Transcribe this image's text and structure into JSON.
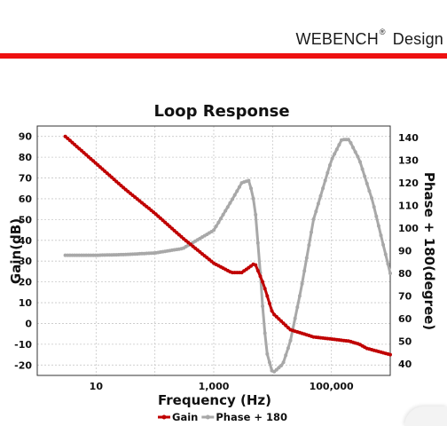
{
  "header": {
    "brand": "WEBENCH",
    "brand_mark": "®",
    "brand_suffix": "Design",
    "accent_color": "#ee1111"
  },
  "chart_data": {
    "type": "line",
    "title": "Loop Response",
    "xlabel": "Frequency (Hz)",
    "ylabel": "Gain(dB)",
    "y2label": "Phase + 180(degree)",
    "xscale": "log",
    "xlim": [
      1,
      1000000
    ],
    "ylim": [
      -25,
      95
    ],
    "y2lim": [
      35,
      145
    ],
    "xticks": [
      10,
      1000,
      100000
    ],
    "xtick_labels": [
      "10",
      "1,000",
      "100,000"
    ],
    "yticks": [
      -20,
      -10,
      0,
      10,
      20,
      30,
      40,
      50,
      60,
      70,
      80,
      90
    ],
    "y2ticks": [
      40,
      50,
      60,
      70,
      80,
      90,
      100,
      110,
      120,
      130,
      140
    ],
    "grid": true,
    "legend_position": "bottom",
    "series": [
      {
        "name": "Gain",
        "axis": "left",
        "color": "#c00000",
        "x": [
          3,
          10,
          30,
          100,
          300,
          1000,
          2000,
          3000,
          4000,
          5000,
          7000,
          10000,
          20000,
          50000,
          100000,
          200000,
          300000,
          400000,
          1000000
        ],
        "y": [
          90,
          77,
          65,
          53,
          41,
          29,
          24.5,
          24.5,
          27,
          29,
          19,
          5,
          -3,
          -6.5,
          -7.5,
          -8.5,
          -10,
          -12,
          -15
        ]
      },
      {
        "name": "Phase + 180",
        "axis": "right",
        "color": "#a8a8a8",
        "x": [
          3,
          10,
          30,
          100,
          300,
          1000,
          2000,
          3000,
          4000,
          5000,
          6000,
          7000,
          8000,
          10000,
          15000,
          20000,
          30000,
          50000,
          100000,
          150000,
          200000,
          300000,
          500000,
          1000000
        ],
        "y": [
          88,
          88,
          88.3,
          89,
          91,
          99,
          112,
          120,
          121,
          110,
          85,
          60,
          45,
          36,
          40,
          50,
          72,
          104,
          130,
          139,
          139,
          130,
          112,
          80
        ]
      }
    ]
  }
}
